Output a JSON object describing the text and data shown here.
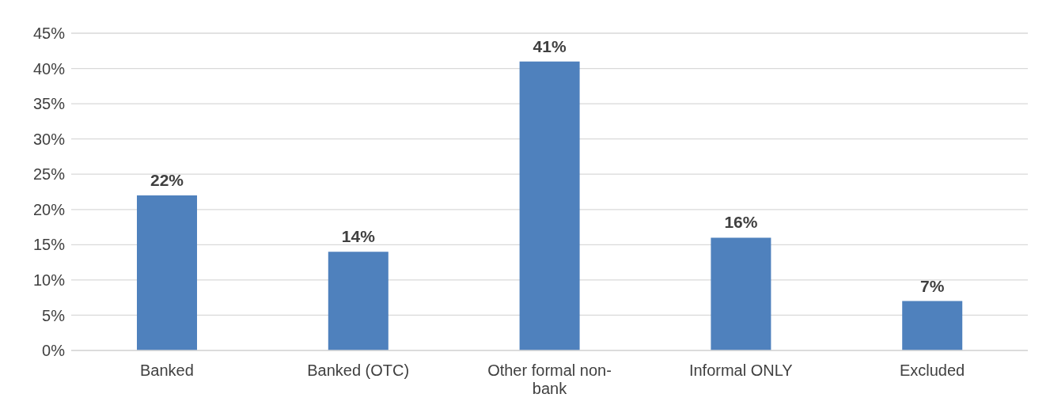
{
  "chart_data": {
    "type": "bar",
    "categories": [
      "Banked",
      "Banked (OTC)",
      "Other formal non-bank",
      "Informal ONLY",
      "Excluded"
    ],
    "values": [
      22,
      14,
      41,
      16,
      7
    ],
    "color": "#4f81bd",
    "value_labels": [
      "22%",
      "14%",
      "41%",
      "16%",
      "7%"
    ],
    "ylim": [
      0,
      45
    ],
    "yticks": [
      {
        "value": 0,
        "label": "0%"
      },
      {
        "value": 5,
        "label": "5%"
      },
      {
        "value": 10,
        "label": "10%"
      },
      {
        "value": 15,
        "label": "15%"
      },
      {
        "value": 20,
        "label": "20%"
      },
      {
        "value": 25,
        "label": "25%"
      },
      {
        "value": 30,
        "label": "30%"
      },
      {
        "value": 35,
        "label": "35%"
      },
      {
        "value": 40,
        "label": "40%"
      },
      {
        "value": 45,
        "label": "45%"
      }
    ],
    "grid": "y"
  }
}
